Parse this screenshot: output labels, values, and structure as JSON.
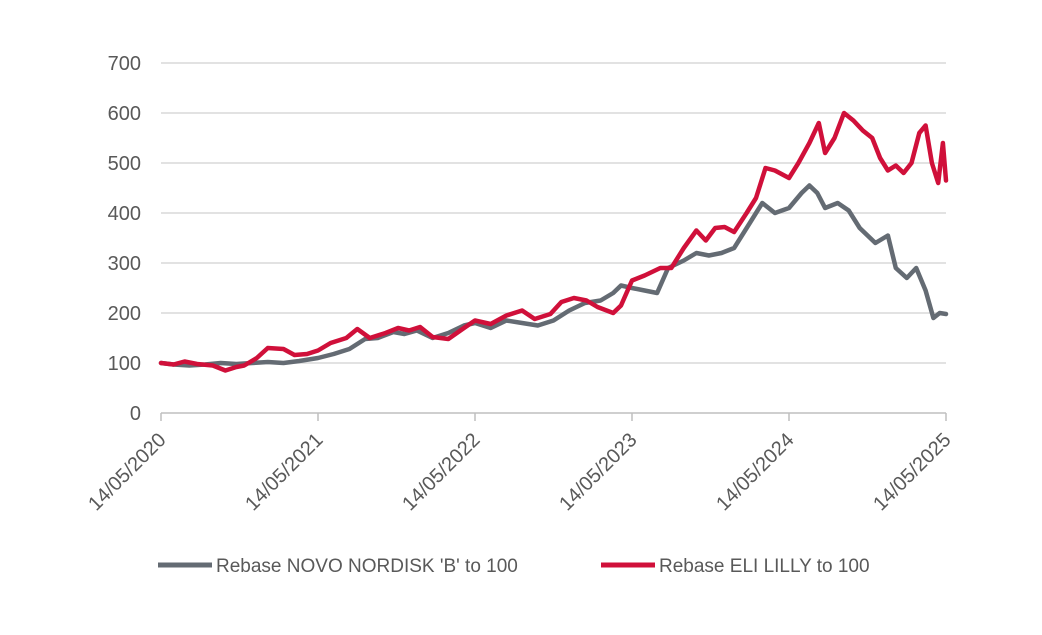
{
  "chart_data": {
    "type": "line",
    "title": "",
    "xlabel": "",
    "ylabel": "",
    "ylim": [
      0,
      700
    ],
    "yticks": [
      0,
      100,
      200,
      300,
      400,
      500,
      600,
      700
    ],
    "xlim": [
      2020.37,
      2025.37
    ],
    "xticks": [
      {
        "value": 2020.37,
        "label": "14/05/2020"
      },
      {
        "value": 2021.37,
        "label": "14/05/2021"
      },
      {
        "value": 2022.37,
        "label": "14/05/2022"
      },
      {
        "value": 2023.37,
        "label": "14/05/2023"
      },
      {
        "value": 2024.37,
        "label": "14/05/2024"
      },
      {
        "value": 2025.37,
        "label": "14/05/2025"
      }
    ],
    "grid": true,
    "legend_position": "bottom",
    "series": [
      {
        "name": "Rebase NOVO NORDISK 'B' to 100",
        "color": "#646B73",
        "points": [
          [
            2020.37,
            100
          ],
          [
            2020.45,
            97
          ],
          [
            2020.55,
            95
          ],
          [
            2020.65,
            97
          ],
          [
            2020.75,
            100
          ],
          [
            2020.85,
            98
          ],
          [
            2020.95,
            100
          ],
          [
            2021.05,
            102
          ],
          [
            2021.15,
            100
          ],
          [
            2021.25,
            104
          ],
          [
            2021.37,
            110
          ],
          [
            2021.47,
            118
          ],
          [
            2021.57,
            128
          ],
          [
            2021.67,
            148
          ],
          [
            2021.75,
            150
          ],
          [
            2021.85,
            162
          ],
          [
            2021.92,
            158
          ],
          [
            2022.0,
            165
          ],
          [
            2022.1,
            150
          ],
          [
            2022.2,
            160
          ],
          [
            2022.3,
            175
          ],
          [
            2022.37,
            180
          ],
          [
            2022.47,
            170
          ],
          [
            2022.57,
            185
          ],
          [
            2022.67,
            180
          ],
          [
            2022.77,
            175
          ],
          [
            2022.87,
            185
          ],
          [
            2022.97,
            205
          ],
          [
            2023.07,
            220
          ],
          [
            2023.17,
            225
          ],
          [
            2023.25,
            240
          ],
          [
            2023.3,
            255
          ],
          [
            2023.37,
            250
          ],
          [
            2023.45,
            245
          ],
          [
            2023.53,
            240
          ],
          [
            2023.6,
            290
          ],
          [
            2023.7,
            305
          ],
          [
            2023.78,
            320
          ],
          [
            2023.86,
            315
          ],
          [
            2023.94,
            320
          ],
          [
            2024.02,
            330
          ],
          [
            2024.12,
            380
          ],
          [
            2024.2,
            420
          ],
          [
            2024.28,
            400
          ],
          [
            2024.37,
            410
          ],
          [
            2024.45,
            440
          ],
          [
            2024.5,
            455
          ],
          [
            2024.55,
            440
          ],
          [
            2024.6,
            410
          ],
          [
            2024.68,
            420
          ],
          [
            2024.75,
            405
          ],
          [
            2024.82,
            370
          ],
          [
            2024.92,
            340
          ],
          [
            2025.0,
            355
          ],
          [
            2025.05,
            290
          ],
          [
            2025.12,
            270
          ],
          [
            2025.18,
            290
          ],
          [
            2025.24,
            245
          ],
          [
            2025.29,
            190
          ],
          [
            2025.33,
            200
          ],
          [
            2025.37,
            198
          ]
        ]
      },
      {
        "name": "Rebase ELI LILLY to 100",
        "color": "#D0103A",
        "points": [
          [
            2020.37,
            100
          ],
          [
            2020.45,
            97
          ],
          [
            2020.52,
            103
          ],
          [
            2020.6,
            98
          ],
          [
            2020.7,
            95
          ],
          [
            2020.78,
            85
          ],
          [
            2020.85,
            92
          ],
          [
            2020.9,
            95
          ],
          [
            2020.98,
            110
          ],
          [
            2021.05,
            130
          ],
          [
            2021.15,
            128
          ],
          [
            2021.22,
            116
          ],
          [
            2021.3,
            118
          ],
          [
            2021.37,
            125
          ],
          [
            2021.45,
            140
          ],
          [
            2021.55,
            150
          ],
          [
            2021.62,
            168
          ],
          [
            2021.7,
            150
          ],
          [
            2021.8,
            160
          ],
          [
            2021.88,
            170
          ],
          [
            2021.95,
            165
          ],
          [
            2022.02,
            172
          ],
          [
            2022.1,
            152
          ],
          [
            2022.2,
            148
          ],
          [
            2022.3,
            170
          ],
          [
            2022.37,
            185
          ],
          [
            2022.47,
            178
          ],
          [
            2022.57,
            195
          ],
          [
            2022.67,
            205
          ],
          [
            2022.75,
            188
          ],
          [
            2022.85,
            198
          ],
          [
            2022.92,
            222
          ],
          [
            2023.0,
            230
          ],
          [
            2023.08,
            225
          ],
          [
            2023.15,
            212
          ],
          [
            2023.25,
            200
          ],
          [
            2023.3,
            215
          ],
          [
            2023.37,
            265
          ],
          [
            2023.45,
            275
          ],
          [
            2023.55,
            290
          ],
          [
            2023.62,
            290
          ],
          [
            2023.7,
            330
          ],
          [
            2023.78,
            365
          ],
          [
            2023.84,
            345
          ],
          [
            2023.9,
            370
          ],
          [
            2023.96,
            372
          ],
          [
            2024.02,
            362
          ],
          [
            2024.1,
            400
          ],
          [
            2024.16,
            430
          ],
          [
            2024.22,
            490
          ],
          [
            2024.28,
            485
          ],
          [
            2024.37,
            470
          ],
          [
            2024.43,
            500
          ],
          [
            2024.5,
            540
          ],
          [
            2024.56,
            580
          ],
          [
            2024.6,
            520
          ],
          [
            2024.66,
            550
          ],
          [
            2024.72,
            600
          ],
          [
            2024.78,
            585
          ],
          [
            2024.84,
            565
          ],
          [
            2024.9,
            550
          ],
          [
            2024.95,
            510
          ],
          [
            2025.0,
            485
          ],
          [
            2025.05,
            495
          ],
          [
            2025.1,
            480
          ],
          [
            2025.15,
            500
          ],
          [
            2025.2,
            560
          ],
          [
            2025.24,
            575
          ],
          [
            2025.28,
            500
          ],
          [
            2025.32,
            460
          ],
          [
            2025.35,
            540
          ],
          [
            2025.37,
            465
          ]
        ]
      }
    ]
  }
}
